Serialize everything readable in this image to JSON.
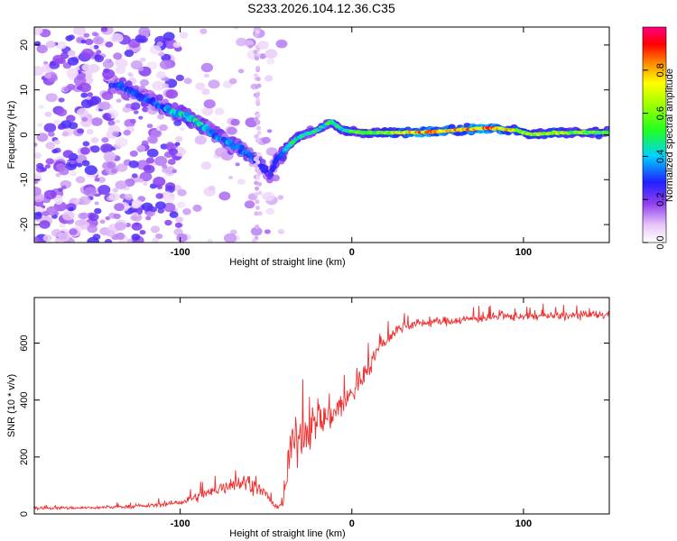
{
  "figure_title": "S233.2026.104.12.36.C35",
  "chart_data": [
    {
      "type": "heatmap",
      "panel": "top",
      "title": "S233.2026.104.12.36.C35",
      "xlabel": "Height of straight line (km)",
      "ylabel": "Frequency (Hz)",
      "xlim": [
        -185,
        150
      ],
      "ylim": [
        -24,
        24
      ],
      "x_ticks": [
        -100,
        0,
        100
      ],
      "x_tick_labels": [
        "-100",
        "0",
        "100"
      ],
      "y_ticks": [
        -20,
        -10,
        0,
        10,
        20
      ],
      "y_tick_labels": [
        "-20",
        "-10",
        "0",
        "10",
        "20"
      ],
      "colorbar": {
        "label": "Normalized spectral amplitude",
        "range": [
          0,
          1
        ],
        "ticks": [
          0,
          0.2,
          0.4,
          0.6,
          0.8
        ],
        "tick_labels": [
          "0.0",
          "0.2",
          "0.4",
          "0.6",
          "0.8"
        ],
        "colormap": "rainbow (white-violet-blue-cyan-green-yellow-red-magenta)"
      },
      "ridge": {
        "description": "dominant spectral ridge frequency vs height",
        "x": [
          -135,
          -125,
          -115,
          -105,
          -95,
          -85,
          -75,
          -65,
          -55,
          -48,
          -43,
          -38,
          -33,
          -28,
          -20,
          -12,
          -5,
          5,
          20,
          40,
          60,
          80,
          95,
          105,
          120,
          150
        ],
        "y": [
          11,
          9,
          7,
          5,
          4,
          1.5,
          -1,
          -3,
          -6,
          -9,
          -5,
          -3,
          -1,
          0,
          1,
          3,
          1,
          0.5,
          0.5,
          0.5,
          1,
          1.5,
          1,
          0,
          0.5,
          0.5
        ],
        "amplitude": [
          0.3,
          0.35,
          0.3,
          0.4,
          0.45,
          0.4,
          0.35,
          0.35,
          0.3,
          0.25,
          0.35,
          0.45,
          0.45,
          0.5,
          0.45,
          0.5,
          0.5,
          0.55,
          0.6,
          0.85,
          0.75,
          0.9,
          0.7,
          0.6,
          0.65,
          0.55
        ]
      },
      "noise_region": {
        "description": "scattered low-amplitude speckle, strongest for heights below -100 km",
        "x_range": [
          -185,
          -100
        ],
        "amplitude_range": [
          0.0,
          0.15
        ]
      }
    },
    {
      "type": "line",
      "panel": "bottom",
      "xlabel": "Height of straight line (km)",
      "ylabel": "SNR (10 * v/v)",
      "xlim": [
        -185,
        150
      ],
      "ylim": [
        0,
        760
      ],
      "x_ticks": [
        -100,
        0,
        100
      ],
      "x_tick_labels": [
        "-100",
        "0",
        "100"
      ],
      "y_ticks": [
        0,
        200,
        400,
        600
      ],
      "y_tick_labels": [
        "0",
        "200",
        "400",
        "600"
      ],
      "color": "#f03030",
      "envelope": {
        "x": [
          -185,
          -150,
          -120,
          -100,
          -90,
          -80,
          -70,
          -60,
          -50,
          -45,
          -40,
          -35,
          -30,
          -25,
          -20,
          -15,
          -10,
          -5,
          0,
          5,
          10,
          15,
          20,
          25,
          30,
          40,
          60,
          80,
          100,
          120,
          150
        ],
        "y": [
          20,
          22,
          28,
          40,
          60,
          80,
          110,
          110,
          70,
          25,
          35,
          240,
          280,
          300,
          320,
          340,
          360,
          390,
          420,
          470,
          520,
          570,
          610,
          640,
          660,
          670,
          680,
          690,
          695,
          695,
          700
        ],
        "noise_amplitude": [
          10,
          10,
          12,
          20,
          35,
          45,
          60,
          60,
          35,
          12,
          20,
          150,
          150,
          140,
          130,
          120,
          110,
          100,
          90,
          80,
          70,
          55,
          45,
          40,
          35,
          30,
          30,
          30,
          30,
          30,
          30
        ]
      }
    }
  ]
}
